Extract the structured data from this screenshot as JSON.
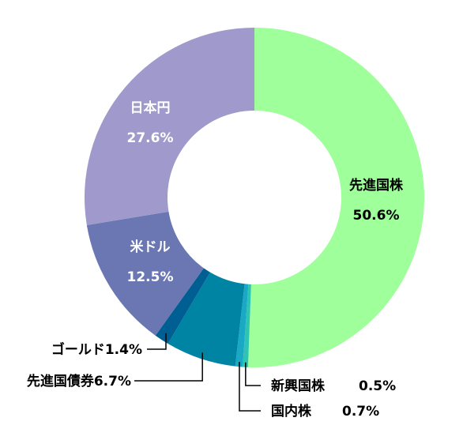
{
  "chart_data": {
    "type": "pie",
    "variant": "donut",
    "title": "",
    "slices": [
      {
        "name": "先進国株",
        "value": 50.6,
        "pct_label": "50.6%",
        "color": "#9eff9b",
        "label_style": "inside"
      },
      {
        "name": "新興国株",
        "value": 0.5,
        "pct_label": "0.5%",
        "color": "#2ec4b4",
        "label_style": "callout"
      },
      {
        "name": "国内株",
        "value": 0.7,
        "pct_label": "0.7%",
        "color": "#19a9c4",
        "label_style": "callout"
      },
      {
        "name": "先進国債券",
        "value": 6.7,
        "pct_label": "6.7%",
        "color": "#0084a4",
        "label_style": "callout-inline"
      },
      {
        "name": "ゴールド",
        "value": 1.4,
        "pct_label": "1.4%",
        "color": "#005f92",
        "label_style": "callout-inline"
      },
      {
        "name": "米ドル",
        "value": 12.5,
        "pct_label": "12.5%",
        "color": "#6a77b2",
        "label_style": "inside"
      },
      {
        "name": "日本円",
        "value": 27.6,
        "pct_label": "27.6%",
        "color": "#9f9acb",
        "label_style": "inside"
      }
    ]
  }
}
